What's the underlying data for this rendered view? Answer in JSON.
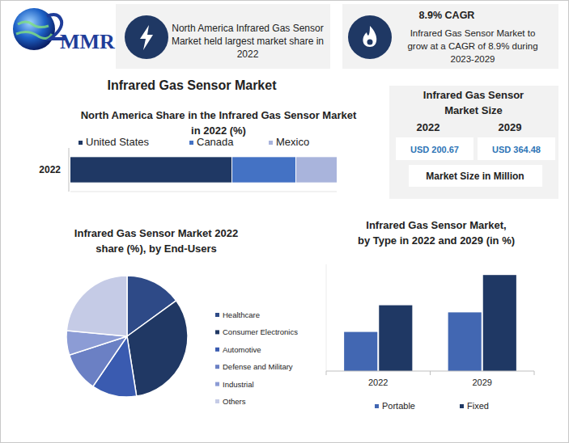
{
  "logo": "MMR",
  "title": "Infrared Gas Sensor Market",
  "highlights": [
    {
      "text": "North America Infrared Gas Sensor\nMarket held largest market share in\n2022"
    },
    {
      "heading": "8.9% CAGR",
      "text": "Infrared Gas Sensor Market to\ngrow at a CAGR of 8.9% during\n2023-2029"
    }
  ],
  "market_size": {
    "title": "Infrared Gas Sensor\nMarket Size",
    "years": [
      "2022",
      "2029"
    ],
    "values": [
      "USD 200.67",
      "USD 364.48"
    ],
    "note": "Market Size in Million"
  },
  "chart_data": [
    {
      "type": "bar",
      "title": "North America Share in the Infrared Gas Sensor Market\nin 2022 (%)",
      "categories": [
        "2022"
      ],
      "series": [
        {
          "name": "United States",
          "color": "#1f3864",
          "values": [
            60.5
          ]
        },
        {
          "name": "Canada",
          "color": "#4472c4",
          "values": [
            24
          ]
        },
        {
          "name": "Mexico",
          "color": "#a9b4dc",
          "values": [
            15.5
          ]
        }
      ],
      "orientation": "horizontal",
      "stacked": true,
      "xlim": [
        0,
        100
      ],
      "tick_labels": "y",
      "legend": "top"
    },
    {
      "type": "pie",
      "title": "Infrared Gas Sensor Market 2022\nshare (%), by End-Users",
      "categories": [
        "Healthcare",
        "Consumer Electronics",
        "Automotive",
        "Defense and Military",
        "Industrial",
        "Others"
      ],
      "values": [
        15,
        32.5,
        12,
        10.5,
        6.5,
        23.5
      ],
      "colors": [
        "#2e4a87",
        "#203864",
        "#3a5bb0",
        "#6b80c4",
        "#8c9cd5",
        "#c5cbe6"
      ],
      "legend": "right"
    },
    {
      "type": "bar",
      "title": "Infrared Gas Sensor Market,\nby Type in 2022 and 2029 (in %)",
      "categories": [
        "2022",
        "2029"
      ],
      "series": [
        {
          "name": "Portable",
          "color": "#4267b2",
          "values": [
            22,
            33
          ]
        },
        {
          "name": "Fixed",
          "color": "#1f3864",
          "values": [
            37,
            54
          ]
        }
      ],
      "ylim": [
        0,
        60
      ],
      "tick_labels": "x",
      "legend": "bottom"
    }
  ]
}
